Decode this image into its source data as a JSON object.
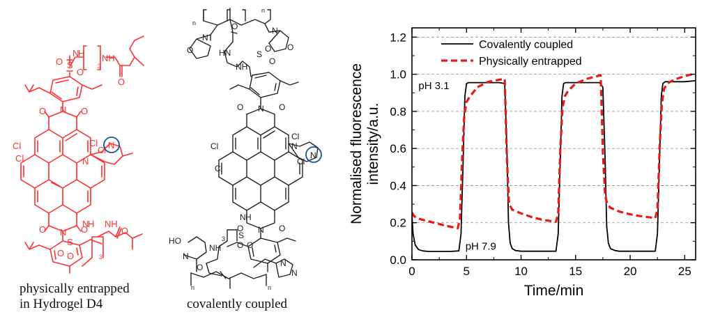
{
  "left_structure": {
    "caption_line1": "physically entrapped",
    "caption_line2": "in Hydrogel D4",
    "color": "#ff3030",
    "atoms": {
      "cl1": "Cl",
      "cl2": "Cl",
      "cl3": "Cl",
      "cl4": "Cl",
      "n_circle": "N",
      "n_top": "N",
      "n_bottom": "N",
      "n_pip": "N",
      "s1": "S",
      "s2": "S",
      "sub3a": "3",
      "sub3b": "3",
      "nh_a": "N",
      "nh_b": "H",
      "nh_c": "NH",
      "nh_d": "N",
      "nh_e": "H",
      "nh_f": "NH",
      "o1": "O",
      "o2": "O",
      "o3": "O",
      "o4": "O",
      "o5": "O",
      "o6": "O",
      "o7": "O",
      "o8": "O",
      "o9": "O",
      "o10": "O"
    }
  },
  "right_structure": {
    "caption": "covalently coupled",
    "color": "#222222",
    "atoms": {
      "cl1": "Cl",
      "cl2": "Cl",
      "cl3": "Cl",
      "cl4": "Cl",
      "n_circle": "N",
      "n_top": "N",
      "n_bottom": "N",
      "n_pip": "N",
      "n_morph1": "N",
      "n_morph2": "N",
      "n_morph3": "N",
      "n_morph4": "N",
      "n_methyl": "N",
      "s1": "S",
      "s2": "S",
      "nh1": "NH",
      "nh2": "N",
      "nh3": "H",
      "nh4": "HN",
      "nh5": "NH",
      "sub_n1": "n",
      "sub_n2": "n",
      "sub_n3": "n",
      "sub_n4": "n",
      "sub3": "3",
      "ho": "HO",
      "o1": "O",
      "o2": "O",
      "o3": "O",
      "o4": "O",
      "o5": "O",
      "o6": "O",
      "o7": "O",
      "o8": "O",
      "o9": "O",
      "o10": "O",
      "o11": "O",
      "o12": "O"
    }
  },
  "chart_data": {
    "type": "line",
    "xlabel": "Time/min",
    "ylabel": "Normalised fluorescence intensity/a.u.",
    "xlim": [
      0,
      26
    ],
    "ylim": [
      0,
      1.25
    ],
    "x_ticks": [
      0,
      5,
      10,
      15,
      20,
      25
    ],
    "y_ticks": [
      0.0,
      0.2,
      0.4,
      0.6,
      0.8,
      1.0,
      1.2
    ],
    "x_tick_labels": [
      "0",
      "5",
      "10",
      "15",
      "20",
      "25"
    ],
    "y_tick_labels": [
      "0.0",
      "0.2",
      "0.4",
      "0.6",
      "0.8",
      "1.0",
      "1.2"
    ],
    "grid": "horizontal dashed",
    "legend_position": "top",
    "annotations": [
      "pH 3.1",
      "pH 7.9"
    ],
    "series": [
      {
        "name": "Covalently coupled",
        "color": "#000000",
        "style": "solid",
        "x": [
          0,
          0.1,
          0.3,
          0.6,
          1.0,
          1.5,
          2.5,
          3.5,
          4.3,
          4.5,
          4.7,
          4.85,
          5.0,
          5.2,
          6.0,
          7.0,
          8.0,
          8.5,
          8.7,
          8.85,
          9.0,
          9.2,
          9.5,
          10.0,
          12.0,
          13.2,
          13.4,
          13.6,
          13.75,
          13.9,
          14.1,
          15.0,
          16.0,
          17.2,
          17.5,
          17.7,
          17.85,
          18.0,
          18.2,
          18.6,
          19.0,
          21.0,
          22.3,
          22.5,
          22.7,
          22.85,
          23.0,
          23.2,
          24.0,
          25.0,
          26.0
        ],
        "y": [
          0.24,
          0.14,
          0.08,
          0.055,
          0.048,
          0.045,
          0.045,
          0.045,
          0.048,
          0.14,
          0.55,
          0.88,
          0.95,
          0.955,
          0.955,
          0.955,
          0.955,
          0.95,
          0.6,
          0.2,
          0.09,
          0.06,
          0.05,
          0.046,
          0.046,
          0.046,
          0.14,
          0.55,
          0.88,
          0.95,
          0.955,
          0.955,
          0.955,
          0.955,
          0.93,
          0.55,
          0.18,
          0.09,
          0.06,
          0.05,
          0.046,
          0.046,
          0.046,
          0.14,
          0.55,
          0.88,
          0.95,
          0.96,
          0.96,
          0.96,
          0.965
        ]
      },
      {
        "name": "Physically entrapped",
        "color": "#e8191b",
        "style": "dashed",
        "x": [
          0,
          0.2,
          0.5,
          1.0,
          2.0,
          3.0,
          4.2,
          4.4,
          4.6,
          4.8,
          5.0,
          5.3,
          6.0,
          7.0,
          8.0,
          8.5,
          8.7,
          8.9,
          9.2,
          10.0,
          11.0,
          12.0,
          13.2,
          13.4,
          13.6,
          13.8,
          14.0,
          14.3,
          15.0,
          16.0,
          17.3,
          17.5,
          17.7,
          17.9,
          18.2,
          19.0,
          20.0,
          21.0,
          22.3,
          22.5,
          22.7,
          22.9,
          23.1,
          23.4,
          24.0,
          25.0,
          26.0
        ],
        "y": [
          0.255,
          0.235,
          0.225,
          0.215,
          0.2,
          0.185,
          0.17,
          0.22,
          0.55,
          0.78,
          0.85,
          0.88,
          0.93,
          0.96,
          0.97,
          0.975,
          0.55,
          0.3,
          0.27,
          0.25,
          0.23,
          0.215,
          0.205,
          0.25,
          0.6,
          0.82,
          0.88,
          0.91,
          0.95,
          0.975,
          0.995,
          0.58,
          0.35,
          0.3,
          0.28,
          0.26,
          0.245,
          0.235,
          0.225,
          0.27,
          0.6,
          0.84,
          0.92,
          0.95,
          0.97,
          0.99,
          1.005
        ]
      }
    ]
  }
}
